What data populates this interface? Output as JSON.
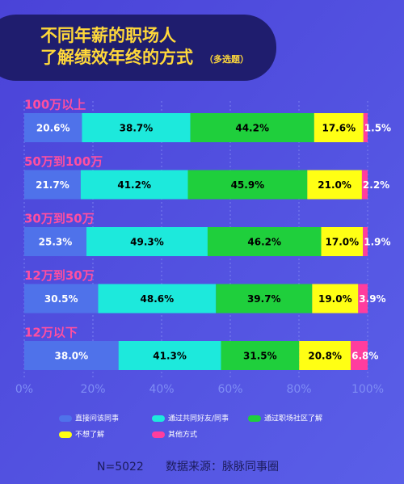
{
  "chart_data": {
    "type": "bar",
    "title": "不同年薪的职场人",
    "title_line2": "了解绩效年终的方式",
    "subtitle": "（多选题）",
    "categories": [
      "100万以上",
      "50万到100万",
      "30万到50万",
      "12万到30万",
      "12万以下"
    ],
    "series": [
      {
        "name": "直接问该同事",
        "color": "#4f72ea",
        "values": [
          20.6,
          21.7,
          25.3,
          30.5,
          38.0
        ],
        "value_labels": [
          "20.6%",
          "21.7%",
          "25.3%",
          "30.5%",
          "38.0%"
        ]
      },
      {
        "name": "通过共同好友/同事",
        "color": "#1de9dc",
        "values": [
          38.7,
          41.2,
          49.3,
          48.6,
          41.3
        ],
        "value_labels": [
          "38.7%",
          "41.2%",
          "49.3%",
          "48.6%",
          "41.3%"
        ]
      },
      {
        "name": "通过职场社区了解",
        "color": "#1fcf3c",
        "values": [
          44.2,
          45.9,
          46.2,
          39.7,
          31.5
        ],
        "value_labels": [
          "44.2%",
          "45.9%",
          "46.2%",
          "39.7%",
          "31.5%"
        ]
      },
      {
        "name": "不想了解",
        "color": "#ffff14",
        "values": [
          17.6,
          21.0,
          17.0,
          19.0,
          20.8
        ],
        "value_labels": [
          "17.6%",
          "21.0%",
          "17.0%",
          "19.0%",
          "20.8%"
        ]
      },
      {
        "name": "其他方式",
        "color": "#ff3d9e",
        "values": [
          1.5,
          2.2,
          1.9,
          3.9,
          6.8
        ],
        "value_labels": [
          "1.5%",
          "2.2%",
          "1.9%",
          "3.9%",
          "6.8%"
        ]
      }
    ],
    "xlim": [
      0,
      100
    ],
    "xticks": [
      {
        "value": 0,
        "label": "0%"
      },
      {
        "value": 20,
        "label": "20%"
      },
      {
        "value": 40,
        "label": "40%"
      },
      {
        "value": 60,
        "label": "60%"
      },
      {
        "value": 80,
        "label": "80%"
      },
      {
        "value": 100,
        "label": "100%"
      }
    ],
    "sample": "N=5022",
    "source": "数据来源：脉脉同事圈"
  }
}
